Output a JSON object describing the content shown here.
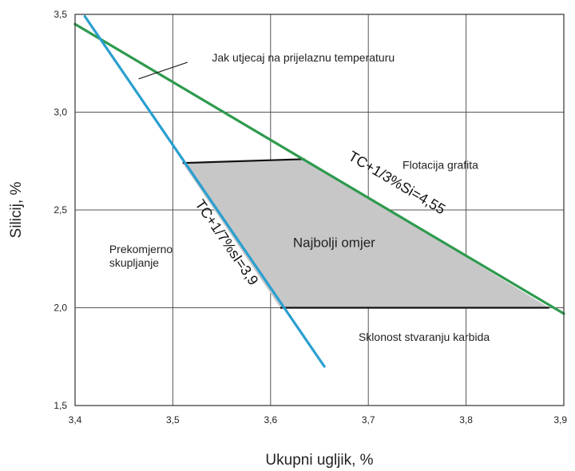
{
  "chart_data": {
    "type": "line",
    "xlabel": "Ukupni ugljik, %",
    "ylabel": "Silicij, %",
    "xlim": [
      3.4,
      3.9
    ],
    "ylim": [
      1.5,
      3.5
    ],
    "x_ticks": [
      "3,4",
      "3,5",
      "3,6",
      "3,7",
      "3,8",
      "3,9"
    ],
    "y_ticks": [
      "1,5",
      "2,0",
      "2,5",
      "3,0",
      "3,5"
    ],
    "x_tick_values": [
      3.4,
      3.5,
      3.6,
      3.7,
      3.8,
      3.9
    ],
    "y_tick_values": [
      1.5,
      2.0,
      2.5,
      3.0,
      3.5
    ],
    "grid": true,
    "series": [
      {
        "name": "TC+1/3%Si=4,55",
        "label_display": "TC+1/3%Si=4,55",
        "color": "#2e9a4e",
        "x": [
          3.4,
          3.9
        ],
        "y": [
          3.45,
          1.97
        ]
      },
      {
        "name": "TC+1/7%sI=3,9",
        "label_display": "TC+1/7%sI=3,9",
        "color": "#2a9fd0",
        "x": [
          3.41,
          3.655
        ],
        "y": [
          3.49,
          1.7
        ]
      }
    ],
    "region": {
      "label": "Najbolji omjer",
      "color": "#c7c7c7",
      "points": [
        [
          3.51,
          2.74
        ],
        [
          3.635,
          2.76
        ],
        [
          3.885,
          2.0
        ],
        [
          3.61,
          2.0
        ]
      ]
    },
    "annotations": [
      {
        "text": "Jak utjecaj na prijelaznu temperaturu",
        "x": 3.54,
        "y": 3.26
      },
      {
        "text": "Flotacija grafita",
        "x": 3.735,
        "y": 2.71
      },
      {
        "text": "Prekomjerno",
        "x": 3.435,
        "y": 2.28
      },
      {
        "text": "skupljanje",
        "x": 3.435,
        "y": 2.21
      },
      {
        "text": "Sklonost stvaranju karbida",
        "x": 3.69,
        "y": 1.83
      }
    ]
  }
}
